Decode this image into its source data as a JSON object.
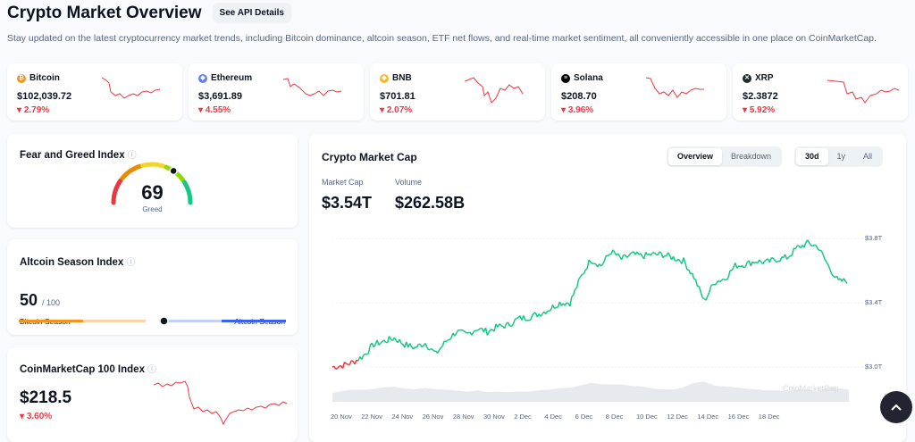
{
  "header": {
    "title": "Crypto Market Overview",
    "api_button": "See API Details",
    "subtitle": "Stay updated on the latest cryptocurrency market trends, including Bitcoin dominance, altcoin season, ETF net flows, and real-time market sentiment, all conveniently accessible in one place on CoinMarketCap."
  },
  "tickers": [
    {
      "name": "Bitcoin",
      "price": "$102,039.72",
      "change": "2.79%",
      "icon": "bitcoin-icon",
      "color": "#f7931a",
      "glyph": "₿"
    },
    {
      "name": "Ethereum",
      "price": "$3,691.89",
      "change": "4.55%",
      "icon": "ethereum-icon",
      "color": "#627eea",
      "glyph": "◆"
    },
    {
      "name": "BNB",
      "price": "$701.81",
      "change": "2.07%",
      "icon": "bnb-icon",
      "color": "#f3ba2f",
      "glyph": "◆"
    },
    {
      "name": "Solana",
      "price": "$208.70",
      "change": "3.96%",
      "icon": "solana-icon",
      "color": "#000000",
      "glyph": "≡"
    },
    {
      "name": "XRP",
      "price": "$2.3872",
      "change": "5.92%",
      "icon": "xrp-icon",
      "color": "#23292f",
      "glyph": "✕"
    }
  ],
  "fear_greed": {
    "title": "Fear and Greed Index",
    "value": "69",
    "label": "Greed",
    "gauge_fraction": 0.69
  },
  "altcoin_season": {
    "title": "Altcoin Season Index",
    "value": "50",
    "max": "/ 100",
    "left_label": "Bitcoin Season",
    "right_label": "Altcoin Season",
    "position_fraction": 0.5
  },
  "cmc100": {
    "title": "CoinMarketCap 100 Index",
    "value": "$218.5",
    "change": "3.60%"
  },
  "market_cap": {
    "title": "Crypto Market Cap",
    "view_tabs": [
      "Overview",
      "Breakdown"
    ],
    "active_view": "Overview",
    "range_tabs": [
      "30d",
      "1y",
      "All"
    ],
    "active_range": "30d",
    "market_cap_label": "Market Cap",
    "market_cap_value": "$3.54T",
    "volume_label": "Volume",
    "volume_value": "$262.58B",
    "watermark": "CoinMarketCap"
  },
  "chart_data": {
    "type": "line",
    "title": "Crypto Market Cap",
    "x_tick_labels": [
      "20 Nov",
      "22 Nov",
      "24 Nov",
      "26 Nov",
      "28 Nov",
      "30 Nov",
      "2 Dec",
      "4 Dec",
      "6 Dec",
      "8 Dec",
      "10 Dec",
      "12 Dec",
      "14 Dec",
      "16 Dec",
      "18 Dec"
    ],
    "y_tick_labels": [
      "$3.8T",
      "$3.4T",
      "$3.0T"
    ],
    "ylim_trillions": [
      2.95,
      3.85
    ],
    "series": [
      {
        "name": "Market Cap (T)",
        "values": [
          3.0,
          3.01,
          3.03,
          3.07,
          3.14,
          3.16,
          3.18,
          3.14,
          3.12,
          3.15,
          3.08,
          3.16,
          3.22,
          3.2,
          3.24,
          3.22,
          3.25,
          3.26,
          3.3,
          3.31,
          3.33,
          3.36,
          3.4,
          3.4,
          3.55,
          3.67,
          3.63,
          3.72,
          3.67,
          3.7,
          3.69,
          3.7,
          3.7,
          3.68,
          3.66,
          3.56,
          3.41,
          3.53,
          3.55,
          3.63,
          3.64,
          3.66,
          3.65,
          3.67,
          3.68,
          3.74,
          3.77,
          3.75,
          3.63,
          3.53,
          3.54
        ]
      }
    ],
    "volume_series": {
      "name": "Volume",
      "values": [
        0.3,
        0.45,
        0.5,
        0.5,
        0.55,
        0.6,
        0.62,
        0.5,
        0.48,
        0.55,
        0.5,
        0.52,
        0.45,
        0.42,
        0.45,
        0.4,
        0.42,
        0.38,
        0.4,
        0.42,
        0.45,
        0.48,
        0.55,
        0.6,
        0.7,
        0.78,
        0.72,
        0.75,
        0.7,
        0.68,
        0.65,
        0.55,
        0.5,
        0.48,
        0.55,
        0.75,
        0.85,
        0.7,
        0.6,
        0.55,
        0.5,
        0.48,
        0.45,
        0.42,
        0.45,
        0.5,
        0.48,
        0.45,
        0.6,
        0.55,
        0.5
      ]
    }
  },
  "colors": {
    "up": "#16c784",
    "down": "#ea3943",
    "accent": "#3861fb"
  }
}
